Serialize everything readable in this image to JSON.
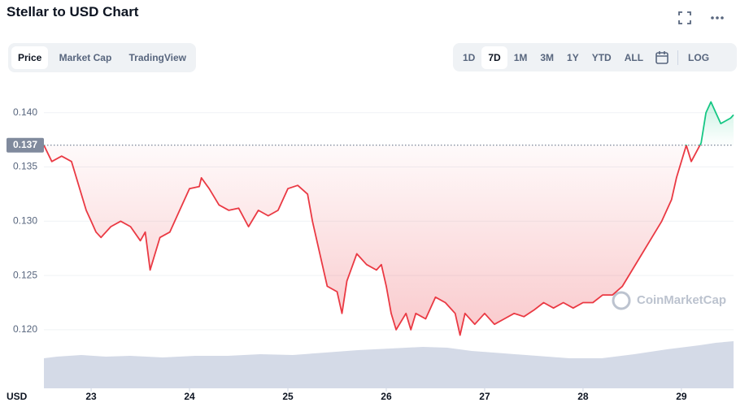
{
  "header": {
    "title": "Stellar to USD Chart"
  },
  "tabs": [
    "Price",
    "Market Cap",
    "TradingView"
  ],
  "active_tab": 0,
  "ranges": [
    "1D",
    "7D",
    "1M",
    "3M",
    "1Y",
    "YTD",
    "ALL"
  ],
  "active_range": 1,
  "log_label": "LOG",
  "watermark": "CoinMarketCap",
  "chart_data": {
    "type": "line",
    "x_axis_label": "USD",
    "x": [
      22.52,
      22.6,
      22.7,
      22.8,
      22.95,
      23.0,
      23.05,
      23.1,
      23.2,
      23.3,
      23.4,
      23.5,
      23.55,
      23.6,
      23.7,
      23.8,
      23.9,
      24.0,
      24.1,
      24.12,
      24.2,
      24.3,
      24.4,
      24.5,
      24.6,
      24.7,
      24.8,
      24.9,
      25.0,
      25.1,
      25.2,
      25.25,
      25.35,
      25.4,
      25.5,
      25.55,
      25.6,
      25.7,
      25.8,
      25.9,
      25.95,
      26.0,
      26.05,
      26.1,
      26.2,
      26.25,
      26.3,
      26.4,
      26.5,
      26.6,
      26.7,
      26.75,
      26.8,
      26.9,
      27.0,
      27.1,
      27.2,
      27.3,
      27.4,
      27.5,
      27.6,
      27.7,
      27.8,
      27.9,
      28.0,
      28.1,
      28.2,
      28.3,
      28.4,
      28.5,
      28.6,
      28.7,
      28.8,
      28.9,
      28.95,
      29.05,
      29.1,
      29.2,
      29.25,
      29.3,
      29.35,
      29.4,
      29.5,
      29.53
    ],
    "values": [
      0.137,
      0.1355,
      0.136,
      0.1355,
      0.131,
      0.13,
      0.129,
      0.1285,
      0.1295,
      0.13,
      0.1295,
      0.1282,
      0.129,
      0.1255,
      0.1285,
      0.129,
      0.131,
      0.133,
      0.1332,
      0.134,
      0.133,
      0.1315,
      0.131,
      0.1312,
      0.1295,
      0.131,
      0.1305,
      0.131,
      0.133,
      0.1333,
      0.1325,
      0.13,
      0.126,
      0.124,
      0.1235,
      0.1215,
      0.1245,
      0.127,
      0.126,
      0.1255,
      0.126,
      0.124,
      0.1215,
      0.12,
      0.1215,
      0.12,
      0.1215,
      0.121,
      0.123,
      0.1225,
      0.1215,
      0.1195,
      0.1215,
      0.1205,
      0.1215,
      0.1205,
      0.121,
      0.1215,
      0.1212,
      0.1218,
      0.1225,
      0.122,
      0.1225,
      0.122,
      0.1225,
      0.1225,
      0.1232,
      0.1232,
      0.124,
      0.1255,
      0.127,
      0.1285,
      0.13,
      0.132,
      0.134,
      0.137,
      0.1355,
      0.1372,
      0.14,
      0.141,
      0.14,
      0.139,
      0.1395,
      0.1398
    ],
    "baseline": 0.137,
    "color_below": "#ea3943",
    "color_above": "#16c784",
    "xlim": [
      22.52,
      29.53
    ],
    "xticks": [
      23,
      24,
      25,
      26,
      27,
      28,
      29
    ],
    "ylim": [
      0.1146,
      0.1429
    ],
    "yticks": [
      {
        "value": 0.12,
        "label": "0.120"
      },
      0.125,
      {
        "value": 0.13,
        "label": "0.130"
      },
      0.135,
      {
        "value": 0.14,
        "label": "0.140"
      }
    ],
    "grid": true
  }
}
